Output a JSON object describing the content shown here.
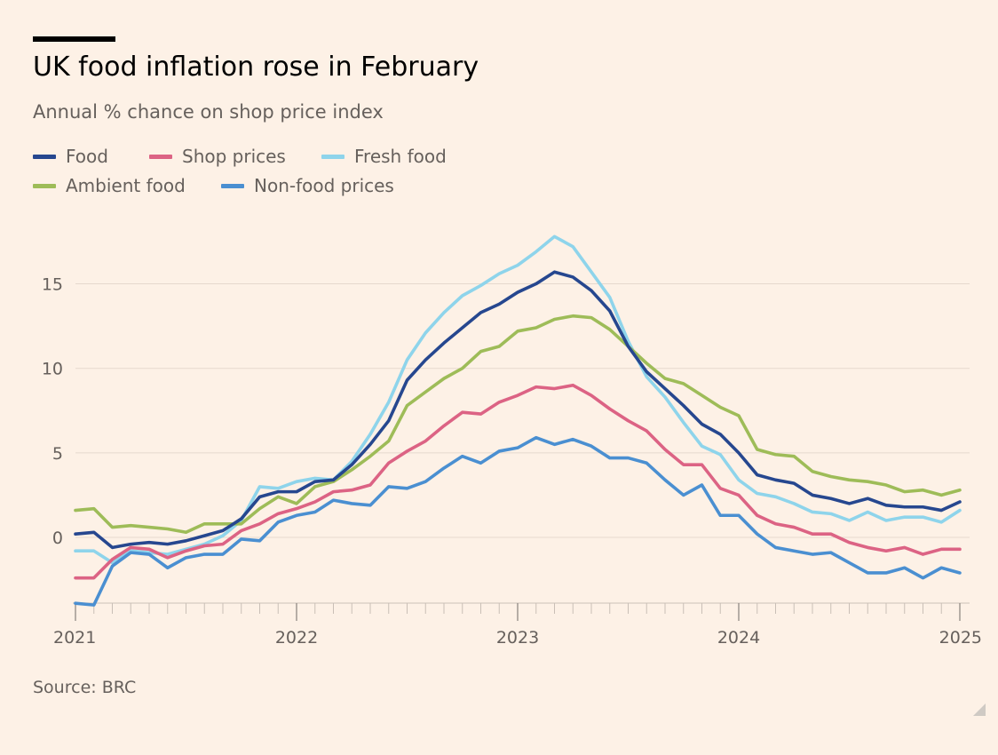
{
  "title": "UK food inflation rose in February",
  "subtitle": "Annual % chance on shop price index",
  "source": "Source: BRC",
  "legend": {
    "food": "Food",
    "shop": "Shop prices",
    "fresh": "Fresh food",
    "ambient": "Ambient food",
    "nonfood": "Non-food prices"
  },
  "colors": {
    "food": "#26478f",
    "shop": "#dc6384",
    "fresh": "#8ed4eb",
    "ambient": "#9ebc58",
    "nonfood": "#4a8fd1"
  },
  "chart_data": {
    "type": "line",
    "title": "UK food inflation rose in February",
    "subtitle": "Annual % chance on shop price index",
    "x_start": "2021-01",
    "x_end": "2025-02",
    "x_ticks": [
      "2021",
      "2022",
      "2023",
      "2024",
      "2025"
    ],
    "y_ticks": [
      "15",
      "10",
      "5",
      "0"
    ],
    "ylim": [
      -4,
      18
    ],
    "grid": true,
    "legend_position": "top-left",
    "series": [
      {
        "key": "food",
        "name": "Food",
        "values": [
          0.2,
          0.3,
          -0.6,
          -0.4,
          -0.3,
          -0.4,
          -0.2,
          0.1,
          0.4,
          1.1,
          2.4,
          2.7,
          2.7,
          3.3,
          3.4,
          4.3,
          5.5,
          6.9,
          9.3,
          10.5,
          11.5,
          12.4,
          13.3,
          13.8,
          14.5,
          15.0,
          15.7,
          15.4,
          14.6,
          13.4,
          11.3,
          9.8,
          8.8,
          7.8,
          6.7,
          6.1,
          5.0,
          3.7,
          3.4,
          3.2,
          2.5,
          2.3,
          2.0,
          2.3,
          1.9,
          1.8,
          1.8,
          1.6,
          2.1
        ]
      },
      {
        "key": "shop",
        "name": "Shop prices",
        "values": [
          -2.4,
          -2.4,
          -1.3,
          -0.6,
          -0.7,
          -1.2,
          -0.8,
          -0.5,
          -0.4,
          0.4,
          0.8,
          1.4,
          1.7,
          2.1,
          2.7,
          2.8,
          3.1,
          4.4,
          5.1,
          5.7,
          6.6,
          7.4,
          7.3,
          8.0,
          8.4,
          8.9,
          8.8,
          9.0,
          8.4,
          7.6,
          6.9,
          6.3,
          5.2,
          4.3,
          4.3,
          2.9,
          2.5,
          1.3,
          0.8,
          0.6,
          0.2,
          0.2,
          -0.3,
          -0.6,
          -0.8,
          -0.6,
          -1.0,
          -0.7,
          -0.7
        ]
      },
      {
        "key": "fresh",
        "name": "Fresh food",
        "values": [
          -0.8,
          -0.8,
          -1.5,
          -0.8,
          -0.9,
          -1.0,
          -0.7,
          -0.4,
          0.1,
          1.0,
          3.0,
          2.9,
          3.3,
          3.5,
          3.4,
          4.5,
          6.1,
          8.0,
          10.5,
          12.1,
          13.3,
          14.3,
          14.9,
          15.6,
          16.1,
          16.9,
          17.8,
          17.2,
          15.7,
          14.2,
          11.6,
          9.5,
          8.3,
          6.8,
          5.4,
          4.9,
          3.4,
          2.6,
          2.4,
          2.0,
          1.5,
          1.4,
          1.0,
          1.5,
          1.0,
          1.2,
          1.2,
          0.9,
          1.6
        ]
      },
      {
        "key": "ambient",
        "name": "Ambient food",
        "values": [
          1.6,
          1.7,
          0.6,
          0.7,
          0.6,
          0.5,
          0.3,
          0.8,
          0.8,
          0.8,
          1.7,
          2.4,
          2.0,
          3.0,
          3.3,
          4.0,
          4.8,
          5.7,
          7.8,
          8.6,
          9.4,
          10.0,
          11.0,
          11.3,
          12.2,
          12.4,
          12.9,
          13.1,
          13.0,
          12.3,
          11.3,
          10.3,
          9.4,
          9.1,
          8.4,
          7.7,
          7.2,
          5.2,
          4.9,
          4.8,
          3.9,
          3.6,
          3.4,
          3.3,
          3.1,
          2.7,
          2.8,
          2.5,
          2.8
        ]
      },
      {
        "key": "nonfood",
        "name": "Non-food prices",
        "values": [
          -3.9,
          -4.0,
          -1.7,
          -0.9,
          -1.0,
          -1.8,
          -1.2,
          -1.0,
          -1.0,
          -0.1,
          -0.2,
          0.9,
          1.3,
          1.5,
          2.2,
          2.0,
          1.9,
          3.0,
          2.9,
          3.3,
          4.1,
          4.8,
          4.4,
          5.1,
          5.3,
          5.9,
          5.5,
          5.8,
          5.4,
          4.7,
          4.7,
          4.4,
          3.4,
          2.5,
          3.1,
          1.3,
          1.3,
          0.2,
          -0.6,
          -0.8,
          -1.0,
          -0.9,
          -1.5,
          -2.1,
          -2.1,
          -1.8,
          -2.4,
          -1.8,
          -2.1
        ]
      }
    ]
  }
}
